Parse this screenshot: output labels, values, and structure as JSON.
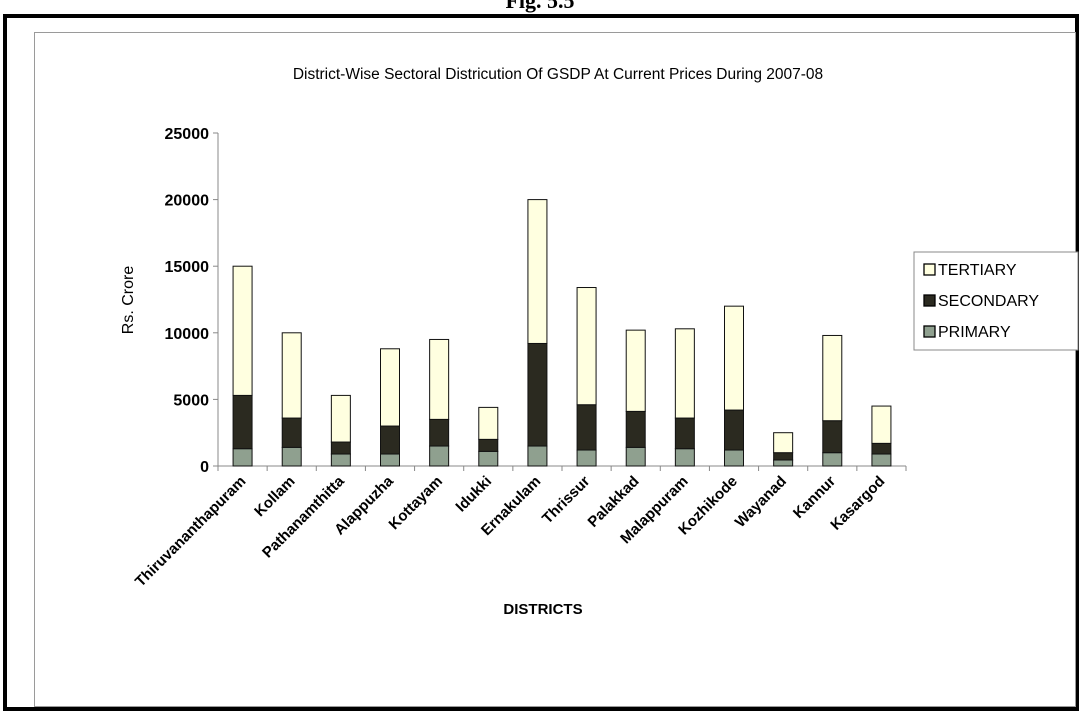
{
  "figure": {
    "caption": "Fig. 5.5"
  },
  "colors": {
    "tertiary": "#ffffe0",
    "secondary": "#2b2a20",
    "primary": "#8fa08f",
    "axis": "#888888",
    "text": "#000000"
  },
  "chart_data": {
    "type": "bar",
    "stacked": true,
    "title": "District-Wise Sectoral Districution Of GSDP At Current Prices During 2007-08",
    "xlabel": "DISTRICTS",
    "ylabel": "Rs. Crore",
    "ylim": [
      0,
      25000
    ],
    "yticks": [
      0,
      5000,
      10000,
      15000,
      20000,
      25000
    ],
    "grid": false,
    "legend_position": "right",
    "categories": [
      "Thiruvananthapuram",
      "Kollam",
      "Pathanamthitta",
      "Alappuzha",
      "Kottayam",
      "Idukki",
      "Ernakulam",
      "Thrissur",
      "Palakkad",
      "Malappuram",
      "Kozhikode",
      "Wayanad",
      "Kannur",
      "Kasargod"
    ],
    "series": [
      {
        "name": "PRIMARY",
        "color": "#8fa08f",
        "values": [
          1300,
          1400,
          900,
          900,
          1500,
          1100,
          1500,
          1200,
          1400,
          1300,
          1200,
          450,
          1000,
          900
        ]
      },
      {
        "name": "SECONDARY",
        "color": "#2b2a20",
        "values": [
          4000,
          2200,
          900,
          2100,
          2000,
          900,
          7700,
          3400,
          2700,
          2300,
          3000,
          550,
          2400,
          800
        ]
      },
      {
        "name": "TERTIARY",
        "color": "#ffffe0",
        "values": [
          9700,
          6400,
          3500,
          5800,
          6000,
          2400,
          10800,
          8800,
          6100,
          6700,
          7800,
          1500,
          6400,
          2800
        ]
      }
    ],
    "legend_order": [
      "TERTIARY",
      "SECONDARY",
      "PRIMARY"
    ]
  }
}
